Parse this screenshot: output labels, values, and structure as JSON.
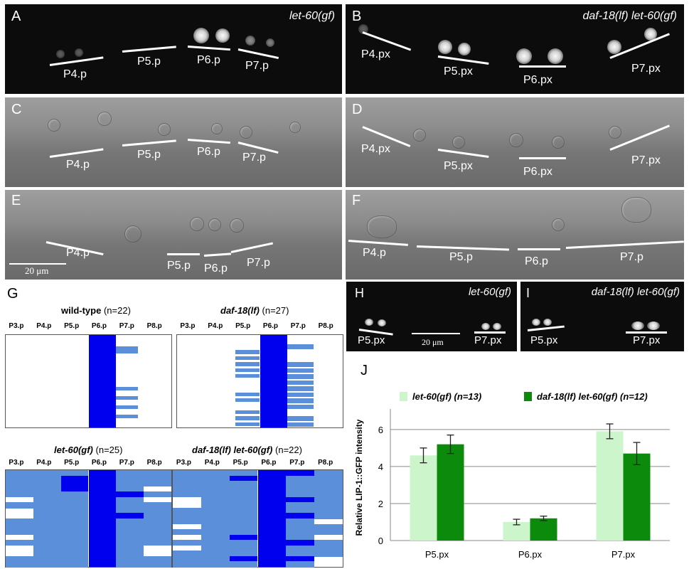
{
  "panels": {
    "A": {
      "letter": "A",
      "caption": "let-60(gf)",
      "labels": [
        "P4.p",
        "P5.p",
        "P6.p",
        "P7.p"
      ]
    },
    "B": {
      "letter": "B",
      "caption": "daf-18(lf) let-60(gf)",
      "labels": [
        "P4.px",
        "P5.px",
        "P6.px",
        "P7.px"
      ]
    },
    "C": {
      "letter": "C",
      "labels": [
        "P4.p",
        "P5.p",
        "P6.p",
        "P7.p"
      ]
    },
    "D": {
      "letter": "D",
      "labels": [
        "P4.px",
        "P5.px",
        "P6.px",
        "P7.px"
      ]
    },
    "E": {
      "letter": "E",
      "labels": [
        "P4.p",
        "P5.p",
        "P6.p",
        "P7.p"
      ],
      "scale": "20 μm"
    },
    "F": {
      "letter": "F",
      "labels": [
        "P4.p",
        "P5.p",
        "P6.p",
        "P7.p"
      ]
    },
    "G": {
      "letter": "G"
    },
    "H": {
      "letter": "H",
      "caption": "let-60(gf)",
      "labels": [
        "P5.px",
        "P7.px"
      ],
      "scale": "20 μm"
    },
    "I": {
      "letter": "I",
      "caption": "daf-18(lf) let-60(gf)",
      "labels": [
        "P5.px",
        "P7.px"
      ]
    },
    "J": {
      "letter": "J"
    }
  },
  "grids": {
    "columns": [
      "P3.p",
      "P4.p",
      "P5.p",
      "P6.p",
      "P7.p",
      "P8.p"
    ],
    "wt": {
      "genotype": "wild-type",
      "n": "(n=22)"
    },
    "daf": {
      "genotype": "daf-18(lf)",
      "n": "(n=27)"
    },
    "let": {
      "genotype": "let-60(gf)",
      "n": "(n=25)"
    },
    "dl": {
      "genotype": "daf-18(lf) let-60(gf)",
      "n": "(n=22)"
    }
  },
  "colors": {
    "primary": "#0000ee",
    "secondary": "#5b8fd9",
    "light_green": "#ccf5cc",
    "dark_green": "#0b8a0b"
  },
  "chart_data": {
    "type": "bar",
    "categories": [
      "P5.px",
      "P6.px",
      "P7.px"
    ],
    "series": [
      {
        "name": "let-60(gf) (n=13)",
        "values": [
          4.6,
          1.0,
          5.9
        ],
        "errors": [
          0.4,
          0.15,
          0.4
        ],
        "color": "#ccf5cc"
      },
      {
        "name": "daf-18(lf) let-60(gf) (n=12)",
        "values": [
          5.2,
          1.2,
          4.7
        ],
        "errors": [
          0.5,
          0.12,
          0.6
        ],
        "color": "#0b8a0b"
      }
    ],
    "ylabel": "Relative LIP-1::GFP intensity",
    "ylim": [
      0,
      6.8
    ],
    "yticks": [
      "0",
      "2",
      "4",
      "6"
    ],
    "grid": true,
    "legend": "top"
  }
}
